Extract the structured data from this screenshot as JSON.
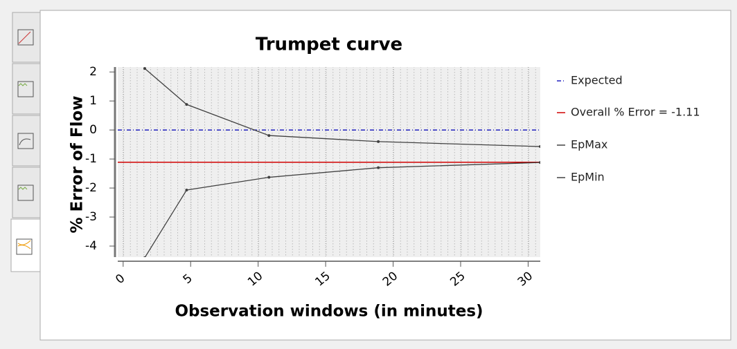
{
  "chart_data": {
    "type": "line",
    "title": "Trumpet curve",
    "x_label": "Observation windows (in minutes)",
    "y_label": "% Error of Flow",
    "x": [
      1.6,
      4.7,
      10.8,
      18.9,
      30.9
    ],
    "series": [
      {
        "name": "EpMax",
        "color": "#404040",
        "values": [
          2.12,
          0.88,
          -0.19,
          -0.4,
          -0.57
        ]
      },
      {
        "name": "EpMin",
        "color": "#404040",
        "values": [
          -4.4,
          -2.07,
          -1.63,
          -1.3,
          -1.12
        ]
      }
    ],
    "hlines": [
      {
        "name": "Expected",
        "color": "#1f1fbf",
        "value": 0,
        "dash": "dashdot"
      },
      {
        "name": "Overall % Error = -1.11",
        "color": "#d00000",
        "value": -1.11,
        "dash": "solid"
      }
    ],
    "xlim": [
      -0.4,
      30.9
    ],
    "ylim": [
      -4.38,
      2.17
    ],
    "xticks": [
      0,
      5,
      10,
      15,
      20,
      25,
      30
    ],
    "yticks": [
      -4,
      -3,
      -2,
      -1,
      0,
      1,
      2
    ],
    "grid": true,
    "legend": "right"
  }
}
